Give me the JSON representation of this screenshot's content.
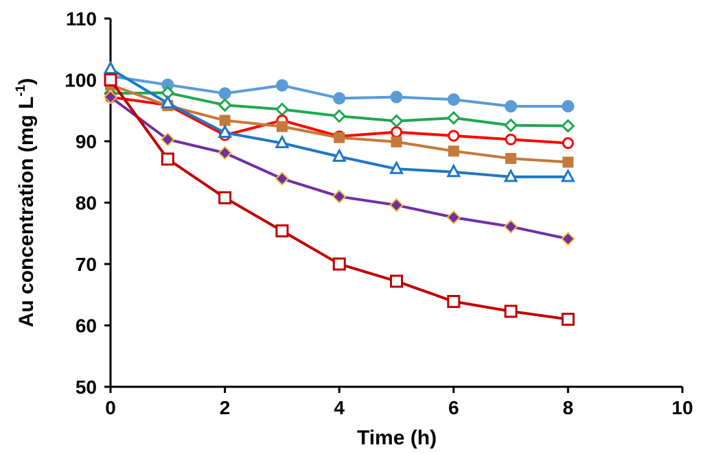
{
  "chart_data": {
    "type": "line",
    "title": "",
    "xlabel": "Time (h)",
    "ylabel_prefix": "Au concentration (mg L",
    "ylabel_superscript": "-1",
    "ylabel_suffix": ")",
    "xlim": [
      0,
      10
    ],
    "ylim": [
      50,
      110
    ],
    "xticks": [
      0,
      2,
      4,
      6,
      8,
      10
    ],
    "yticks": [
      50,
      60,
      70,
      80,
      90,
      100,
      110
    ],
    "grid": false,
    "legend": "none",
    "x": [
      0,
      1,
      2,
      3,
      4,
      5,
      6,
      7,
      8
    ],
    "series": [
      {
        "color": "#5b9bd5",
        "marker": "circle-filled",
        "values": [
          100.6,
          99.2,
          97.8,
          99.1,
          97.0,
          97.2,
          96.8,
          95.7,
          95.7
        ]
      },
      {
        "color": "#1fa84f",
        "marker": "diamond-open",
        "values": [
          97.8,
          97.9,
          95.9,
          95.2,
          94.1,
          93.3,
          93.8,
          92.6,
          92.5
        ]
      },
      {
        "color": "#ff0000",
        "marker": "circle-open",
        "values": [
          97.2,
          95.9,
          91.0,
          93.4,
          90.8,
          91.5,
          90.9,
          90.3,
          89.7
        ]
      },
      {
        "color": "#c5793a",
        "marker": "square-filled",
        "values": [
          99.2,
          95.8,
          93.4,
          92.4,
          90.6,
          89.9,
          88.4,
          87.2,
          86.6
        ]
      },
      {
        "color": "#1f77c4",
        "marker": "triangle-open",
        "values": [
          101.8,
          96.2,
          91.4,
          89.7,
          87.5,
          85.5,
          85.0,
          84.2,
          84.2
        ]
      },
      {
        "color": "#7030a0",
        "marker": "diamond-filled",
        "values": [
          97.2,
          90.3,
          88.1,
          83.9,
          81.0,
          79.6,
          77.6,
          76.1,
          74.1
        ]
      },
      {
        "color": "#c00000",
        "marker": "square-open",
        "values": [
          100.0,
          87.1,
          80.8,
          75.4,
          70.0,
          67.2,
          63.9,
          62.3,
          61.0
        ]
      }
    ]
  }
}
